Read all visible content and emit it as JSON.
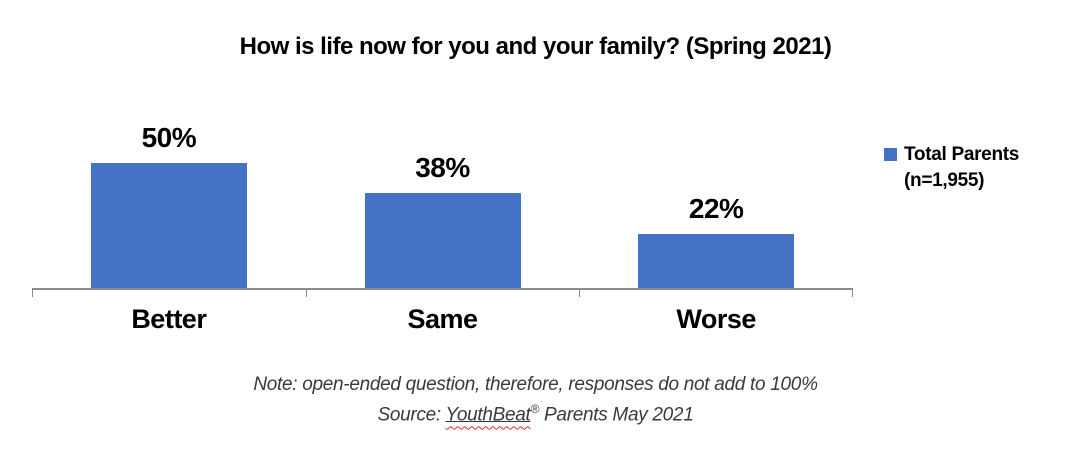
{
  "chart_data": {
    "type": "bar",
    "title": "How is life now for you and your family? (Spring 2021)",
    "categories": [
      "Better",
      "Same",
      "Worse"
    ],
    "series": [
      {
        "name": "Total Parents (n=1,955)",
        "values": [
          50,
          38,
          22
        ]
      }
    ],
    "value_labels": [
      "50%",
      "38%",
      "22%"
    ],
    "xlabel": "",
    "ylabel": "",
    "ylim": [
      0,
      70
    ],
    "grid": false,
    "y_axis_visible": false,
    "legend_position": "right",
    "bar_color": "#4472C4",
    "axis_color": "#8c8c8c"
  },
  "legend": {
    "swatch_color": "#4472C4",
    "label_line1": "Total Parents",
    "label_line2": "(n=1,955)"
  },
  "notes": {
    "note_line": "Note: open-ended question, therefore, responses do not add to 100%",
    "source_prefix": "Source: ",
    "source_brand": "YouthBeat",
    "source_reg": "®",
    "source_suffix": " Parents May 2021"
  }
}
